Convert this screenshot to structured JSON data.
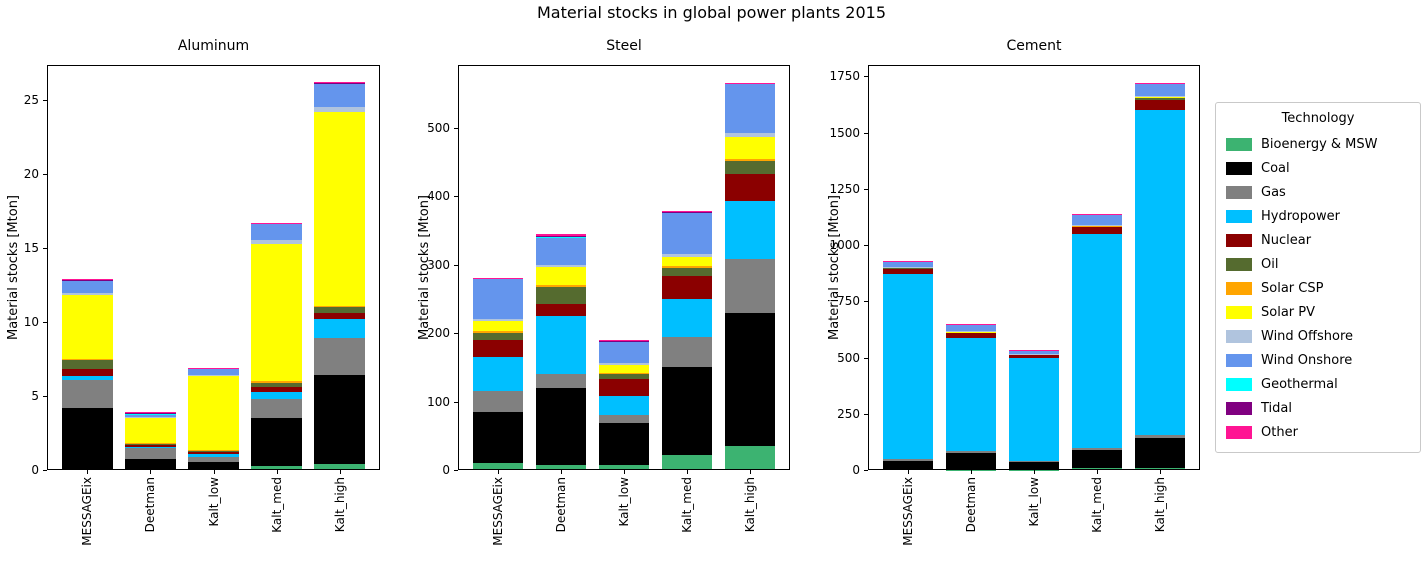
{
  "figure": {
    "title": "Material stocks in global power plants 2015"
  },
  "legend": {
    "title": "Technology",
    "entries": [
      {
        "label": "Bioenergy & MSW",
        "color": "#3cb371"
      },
      {
        "label": "Coal",
        "color": "#000000"
      },
      {
        "label": "Gas",
        "color": "#808080"
      },
      {
        "label": "Hydropower",
        "color": "#00bfff"
      },
      {
        "label": "Nuclear",
        "color": "#8b0000"
      },
      {
        "label": "Oil",
        "color": "#556b2f"
      },
      {
        "label": "Solar CSP",
        "color": "#ffa500"
      },
      {
        "label": "Solar PV",
        "color": "#ffff00"
      },
      {
        "label": "Wind Offshore",
        "color": "#b0c4de"
      },
      {
        "label": "Wind Onshore",
        "color": "#6495ed"
      },
      {
        "label": "Geothermal",
        "color": "#00ffff"
      },
      {
        "label": "Tidal",
        "color": "#800080"
      },
      {
        "label": "Other",
        "color": "#ff1493"
      }
    ]
  },
  "chart_data": [
    {
      "type": "bar",
      "stacked": true,
      "title": "Aluminum",
      "ylabel": "Material stocks [Mton]",
      "categories": [
        "MESSAGEix",
        "Deetman",
        "Kalt_low",
        "Kalt_med",
        "Kalt_high"
      ],
      "ylim": [
        0,
        27.4
      ],
      "xlim": [
        -0.64,
        4.64
      ],
      "yticks": [
        0,
        5,
        10,
        15,
        20,
        25
      ],
      "series": [
        {
          "name": "Bioenergy & MSW",
          "values": [
            0.1,
            0.05,
            0.05,
            0.3,
            0.4
          ]
        },
        {
          "name": "Coal",
          "values": [
            4.1,
            0.7,
            0.5,
            3.2,
            6.0
          ]
        },
        {
          "name": "Gas",
          "values": [
            1.9,
            0.75,
            0.3,
            1.3,
            2.5
          ]
        },
        {
          "name": "Hydropower",
          "values": [
            0.25,
            0.08,
            0.25,
            0.5,
            1.3
          ]
        },
        {
          "name": "Nuclear",
          "values": [
            0.5,
            0.1,
            0.15,
            0.3,
            0.4
          ]
        },
        {
          "name": "Oil",
          "values": [
            0.6,
            0.1,
            0.05,
            0.3,
            0.4
          ]
        },
        {
          "name": "Solar CSP",
          "values": [
            0.08,
            0.04,
            0.03,
            0.1,
            0.1
          ]
        },
        {
          "name": "Solar PV",
          "values": [
            4.3,
            1.7,
            5.0,
            9.3,
            13.1
          ]
        },
        {
          "name": "Wind Offshore",
          "values": [
            0.12,
            0.06,
            0.12,
            0.25,
            0.35
          ]
        },
        {
          "name": "Wind Onshore",
          "values": [
            0.9,
            0.22,
            0.4,
            1.1,
            1.6
          ]
        },
        {
          "name": "Geothermal",
          "values": [
            0.02,
            0.02,
            0.02,
            0.03,
            0.03
          ]
        },
        {
          "name": "Tidal",
          "values": [
            0.01,
            0.08,
            0.01,
            0.02,
            0.02
          ]
        },
        {
          "name": "Other",
          "values": [
            0.01,
            0.02,
            0.01,
            0.02,
            0.02
          ]
        }
      ]
    },
    {
      "type": "bar",
      "stacked": true,
      "title": "Steel",
      "ylabel": "Material stocks [Mton]",
      "categories": [
        "MESSAGEix",
        "Deetman",
        "Kalt_low",
        "Kalt_med",
        "Kalt_high"
      ],
      "ylim": [
        0,
        592
      ],
      "xlim": [
        -0.64,
        4.64
      ],
      "yticks": [
        0,
        100,
        200,
        300,
        400,
        500
      ],
      "series": [
        {
          "name": "Bioenergy & MSW",
          "values": [
            10,
            8,
            8,
            22,
            35
          ]
        },
        {
          "name": "Coal",
          "values": [
            75,
            112,
            60,
            128,
            195
          ]
        },
        {
          "name": "Gas",
          "values": [
            30,
            20,
            13,
            45,
            78
          ]
        },
        {
          "name": "Hydropower",
          "values": [
            50,
            85,
            27,
            55,
            85
          ]
        },
        {
          "name": "Nuclear",
          "values": [
            25,
            18,
            25,
            33,
            40
          ]
        },
        {
          "name": "Oil",
          "values": [
            10,
            25,
            8,
            12,
            18
          ]
        },
        {
          "name": "Solar CSP",
          "values": [
            3,
            2,
            1,
            3,
            4
          ]
        },
        {
          "name": "Solar PV",
          "values": [
            15,
            27,
            12,
            14,
            32
          ]
        },
        {
          "name": "Wind Offshore",
          "values": [
            3,
            3,
            2,
            4,
            5
          ]
        },
        {
          "name": "Wind Onshore",
          "values": [
            58,
            40,
            32,
            60,
            72
          ]
        },
        {
          "name": "Geothermal",
          "values": [
            1,
            1,
            0.5,
            1,
            1
          ]
        },
        {
          "name": "Tidal",
          "values": [
            0.5,
            1,
            0.5,
            0.5,
            0.5
          ]
        },
        {
          "name": "Other",
          "values": [
            0.5,
            3,
            0.5,
            0.5,
            0.5
          ]
        }
      ]
    },
    {
      "type": "bar",
      "stacked": true,
      "title": "Cement",
      "ylabel": "Material stocks [Mton]",
      "categories": [
        "MESSAGEix",
        "Deetman",
        "Kalt_low",
        "Kalt_med",
        "Kalt_high"
      ],
      "ylim": [
        0,
        1800
      ],
      "xlim": [
        -0.64,
        4.64
      ],
      "yticks": [
        0,
        250,
        500,
        750,
        1000,
        1250,
        1500,
        1750
      ],
      "series": [
        {
          "name": "Bioenergy & MSW",
          "values": [
            3,
            2,
            2,
            8,
            8
          ]
        },
        {
          "name": "Coal",
          "values": [
            35,
            73,
            33,
            80,
            135
          ]
        },
        {
          "name": "Gas",
          "values": [
            10,
            8,
            5,
            10,
            12
          ]
        },
        {
          "name": "Hydropower",
          "values": [
            822,
            505,
            458,
            950,
            1443
          ]
        },
        {
          "name": "Nuclear",
          "values": [
            25,
            20,
            14,
            32,
            48
          ]
        },
        {
          "name": "Oil",
          "values": [
            5,
            4,
            2,
            5,
            10
          ]
        },
        {
          "name": "Solar CSP",
          "values": [
            1,
            1,
            0.5,
            1,
            1
          ]
        },
        {
          "name": "Solar PV",
          "values": [
            1,
            1,
            0.5,
            1,
            2
          ]
        },
        {
          "name": "Wind Offshore",
          "values": [
            2,
            2,
            1,
            3,
            5
          ]
        },
        {
          "name": "Wind Onshore",
          "values": [
            22,
            30,
            16,
            45,
            55
          ]
        },
        {
          "name": "Geothermal",
          "values": [
            1,
            1,
            0.5,
            1,
            1
          ]
        },
        {
          "name": "Tidal",
          "values": [
            0.5,
            1,
            0.5,
            0.5,
            1
          ]
        },
        {
          "name": "Other",
          "values": [
            0.5,
            1,
            0.5,
            0.5,
            1
          ]
        }
      ]
    }
  ]
}
